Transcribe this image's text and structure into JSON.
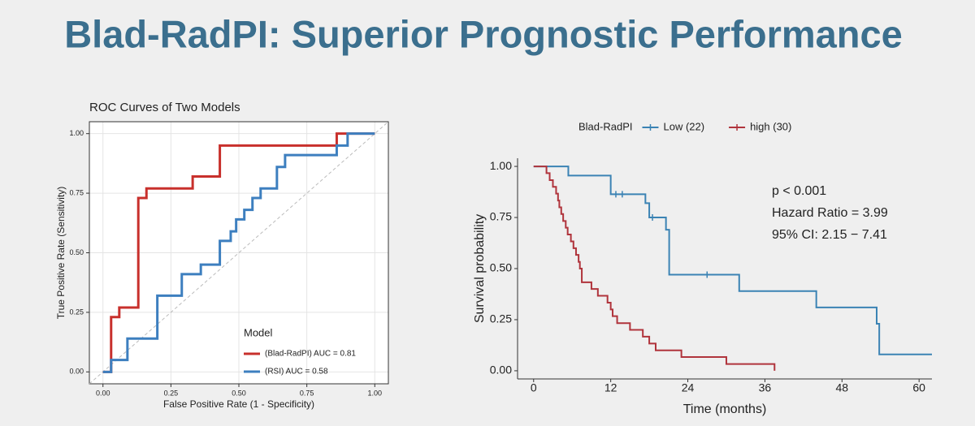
{
  "title": "Blad-RadPI: Superior Prognostic Performance",
  "chart_data": [
    {
      "type": "step",
      "title": "ROC Curves of Two Models",
      "x_label": "False Positive Rate (1 - Specificity)",
      "y_label": "True Positive Rate (Sensitivity)",
      "xlim": [
        -0.05,
        1.05
      ],
      "ylim": [
        -0.05,
        1.05
      ],
      "xticks": [
        {
          "value": 0,
          "label": "0.00"
        },
        {
          "value": 0.25,
          "label": "0.25"
        },
        {
          "value": 0.5,
          "label": "0.50"
        },
        {
          "value": 0.75,
          "label": "0.75"
        },
        {
          "value": 1,
          "label": "1.00"
        }
      ],
      "yticks": [
        {
          "value": 0,
          "label": "0.00"
        },
        {
          "value": 0.25,
          "label": "0.25"
        },
        {
          "value": 0.5,
          "label": "0.50"
        },
        {
          "value": 0.75,
          "label": "0.75"
        },
        {
          "value": 1,
          "label": "1.00"
        }
      ],
      "grid": true,
      "frame": true,
      "diagonal": true,
      "legend": "bottom-right",
      "legend_title": "Model",
      "series": [
        {
          "name": "(Blad-RadPI) AUC = 0.81",
          "color": "#c8302c",
          "x": [
            0,
            0.03,
            0.06,
            0.13,
            0.16,
            0.33,
            0.43,
            0.86,
            1
          ],
          "values": [
            0,
            0.23,
            0.27,
            0.73,
            0.77,
            0.82,
            0.95,
            1,
            1
          ]
        },
        {
          "name": "(RSI) AUC = 0.58",
          "color": "#3d7fbf",
          "x": [
            0,
            0.03,
            0.09,
            0.2,
            0.29,
            0.36,
            0.43,
            0.47,
            0.49,
            0.52,
            0.55,
            0.58,
            0.64,
            0.67,
            0.86,
            0.9,
            1
          ],
          "values": [
            0,
            0.05,
            0.14,
            0.32,
            0.41,
            0.45,
            0.55,
            0.59,
            0.64,
            0.68,
            0.73,
            0.77,
            0.86,
            0.91,
            0.95,
            1,
            1
          ]
        }
      ]
    },
    {
      "type": "step",
      "x_label": "Time (months)",
      "y_label": "Survival probability",
      "xlim": [
        -2.5,
        62
      ],
      "ylim": [
        -0.04,
        1.04
      ],
      "xticks": [
        0,
        12,
        24,
        36,
        48,
        60
      ],
      "yticks": [
        {
          "value": 0,
          "label": "0.00"
        },
        {
          "value": 0.25,
          "label": "0.25"
        },
        {
          "value": 0.5,
          "label": "0.50"
        },
        {
          "value": 0.75,
          "label": "0.75"
        },
        {
          "value": 1,
          "label": "1.00"
        }
      ],
      "grid": false,
      "frame": false,
      "legend": "top",
      "legend_title": "Blad-RadPI",
      "annotations": [
        "p < 0.001",
        "Hazard Ratio = 3.99",
        "95% CI: 2.15 − 7.41"
      ],
      "series": [
        {
          "name": "Low (22)",
          "color": "#3b83b4",
          "x": [
            0,
            5.4,
            12,
            17.4,
            18,
            20.6,
            21.1,
            32,
            44,
            53.4,
            53.8,
            62
          ],
          "values": [
            1,
            0.955,
            0.864,
            0.82,
            0.75,
            0.69,
            0.47,
            0.39,
            0.31,
            0.23,
            0.08,
            0.08
          ],
          "censored": {
            "x": [
              12.8,
              13.8,
              18.5,
              27
            ],
            "values": [
              0.864,
              0.864,
              0.75,
              0.47
            ]
          }
        },
        {
          "name": "high (30)",
          "color": "#b0343c",
          "x": [
            0,
            2,
            2.5,
            3,
            3.5,
            3.8,
            4,
            4.3,
            4.6,
            5,
            5.3,
            5.8,
            6.2,
            6.6,
            7,
            7.2,
            7.5,
            9,
            10,
            11.5,
            12,
            12.3,
            13,
            15,
            17,
            18,
            19,
            23,
            30,
            37.5
          ],
          "values": [
            1,
            0.967,
            0.933,
            0.9,
            0.867,
            0.833,
            0.8,
            0.767,
            0.733,
            0.7,
            0.667,
            0.633,
            0.6,
            0.567,
            0.533,
            0.5,
            0.433,
            0.4,
            0.367,
            0.333,
            0.3,
            0.267,
            0.233,
            0.2,
            0.167,
            0.133,
            0.1,
            0.067,
            0.033,
            0
          ]
        }
      ]
    }
  ]
}
